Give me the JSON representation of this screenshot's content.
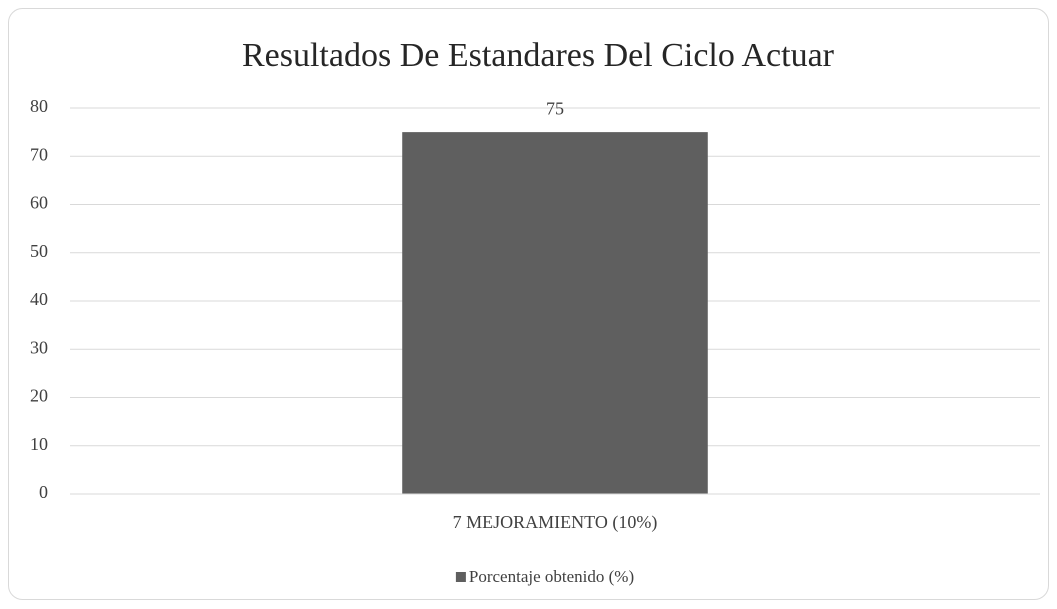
{
  "chart_data": {
    "type": "bar",
    "title": "Resultados De Estandares Del Ciclo Actuar",
    "categories": [
      "7 MEJORAMIENTO (10%)"
    ],
    "series": [
      {
        "name": "Porcentaje obtenido (%)",
        "color": "#5f5f5f",
        "values": [
          75
        ]
      }
    ],
    "ylim": [
      0,
      80
    ],
    "yticks": [
      0,
      10,
      20,
      30,
      40,
      50,
      60,
      70,
      80
    ],
    "grid": true,
    "legend": "bottom"
  }
}
